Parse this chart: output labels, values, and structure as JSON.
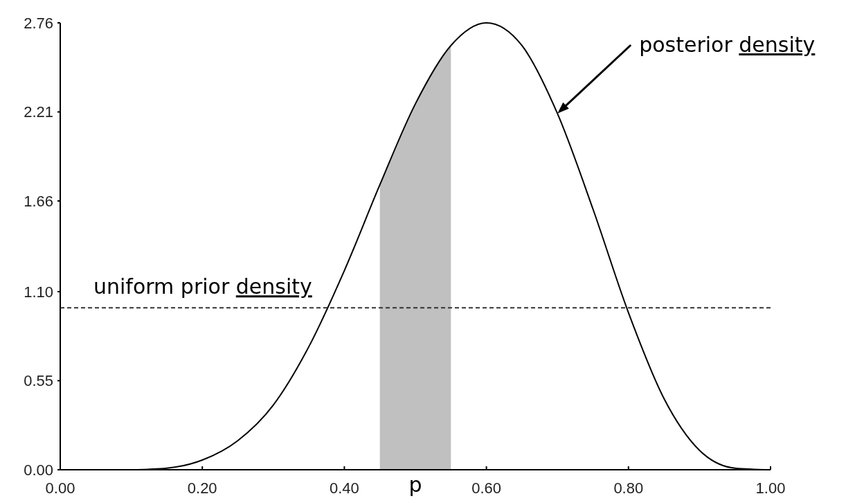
{
  "chart_data": {
    "type": "line",
    "xlabel": "p",
    "xlim": [
      0,
      1
    ],
    "ylim": [
      0,
      2.76
    ],
    "xticks": [
      {
        "value": 0,
        "label": "0.00"
      },
      {
        "value": 0.2,
        "label": "0.20"
      },
      {
        "value": 0.4,
        "label": "0.40"
      },
      {
        "value": 0.6,
        "label": "0.60"
      },
      {
        "value": 0.8,
        "label": "0.80"
      },
      {
        "value": 1,
        "label": "1.00"
      }
    ],
    "yticks": [
      {
        "value": 0,
        "label": "0.00"
      },
      {
        "value": 0.55,
        "label": "0.55"
      },
      {
        "value": 1.1,
        "label": "1.10"
      },
      {
        "value": 1.66,
        "label": "1.66"
      },
      {
        "value": 2.21,
        "label": "2.21"
      },
      {
        "value": 2.76,
        "label": "2.76"
      }
    ],
    "series": [
      {
        "type": "area",
        "color": "#c0c0c0",
        "x": [
          0.45,
          0.475,
          0.5,
          0.525,
          0.55
        ],
        "values": [
          1.76,
          2.01,
          2.26,
          2.46,
          2.62
        ]
      },
      {
        "color": "#000000",
        "x": [
          0.1,
          0.15,
          0.2,
          0.25,
          0.3,
          0.35,
          0.4,
          0.45,
          0.5,
          0.55,
          0.6,
          0.65,
          0.7,
          0.75,
          0.8,
          0.85,
          0.9,
          0.95,
          1.0
        ],
        "values": [
          0,
          0.01,
          0.06,
          0.18,
          0.4,
          0.76,
          1.23,
          1.76,
          2.26,
          2.62,
          2.76,
          2.62,
          2.2,
          1.61,
          0.97,
          0.44,
          0.12,
          0.01,
          0
        ]
      }
    ],
    "ref_lines": [
      {
        "axis": "y",
        "value": 1.0,
        "label": "uniform prior density",
        "color": "#333333",
        "line_style": "dashed"
      }
    ],
    "annotations": [
      {
        "text": "posterior density",
        "x": 0.7,
        "y": 2.2
      }
    ]
  }
}
